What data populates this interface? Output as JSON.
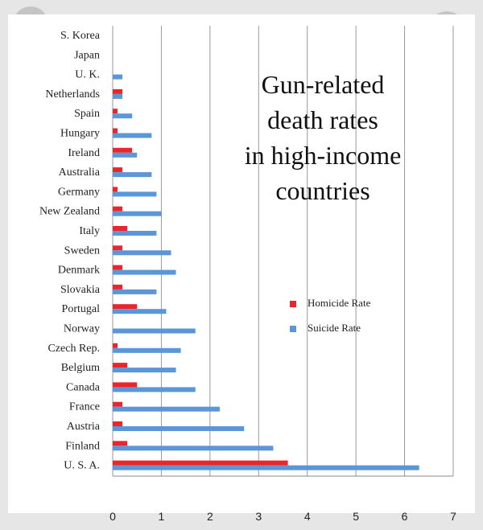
{
  "overlay": {
    "close_icon": "close-icon",
    "share_icon": "share-icon"
  },
  "chart_data": {
    "type": "bar",
    "orientation": "horizontal",
    "title_lines": [
      "Gun-related",
      "death rates",
      "in high-income",
      "countries"
    ],
    "xlabel": "",
    "ylabel": "",
    "xlim": [
      0,
      7
    ],
    "xticks": [
      "0",
      "1",
      "2",
      "3",
      "4",
      "5",
      "6",
      "7"
    ],
    "grid": true,
    "legend_position": "right",
    "categories": [
      "S. Korea",
      "Japan",
      "U. K.",
      "Netherlands",
      "Spain",
      "Hungary",
      "Ireland",
      "Australia",
      "Germany",
      "New Zealand",
      "Italy",
      "Sweden",
      "Denmark",
      "Slovakia",
      "Portugal",
      "Norway",
      "Czech Rep.",
      "Belgium",
      "Canada",
      "France",
      "Austria",
      "Finland",
      "U. S. A."
    ],
    "series": [
      {
        "name": "Homicide Rate",
        "color": "#e8262b",
        "values": [
          0,
          0,
          0,
          0.2,
          0.1,
          0.1,
          0.4,
          0.2,
          0.1,
          0.2,
          0.3,
          0.2,
          0.2,
          0.2,
          0.5,
          0,
          0.1,
          0.3,
          0.5,
          0.2,
          0.2,
          0.3,
          3.6
        ]
      },
      {
        "name": "Suicide Rate",
        "color": "#5b96d8",
        "values": [
          0,
          0,
          0.2,
          0.2,
          0.4,
          0.8,
          0.5,
          0.8,
          0.9,
          1.0,
          0.9,
          1.2,
          1.3,
          0.9,
          1.1,
          1.7,
          1.4,
          1.3,
          1.7,
          2.2,
          2.7,
          3.3,
          6.3
        ]
      }
    ]
  }
}
